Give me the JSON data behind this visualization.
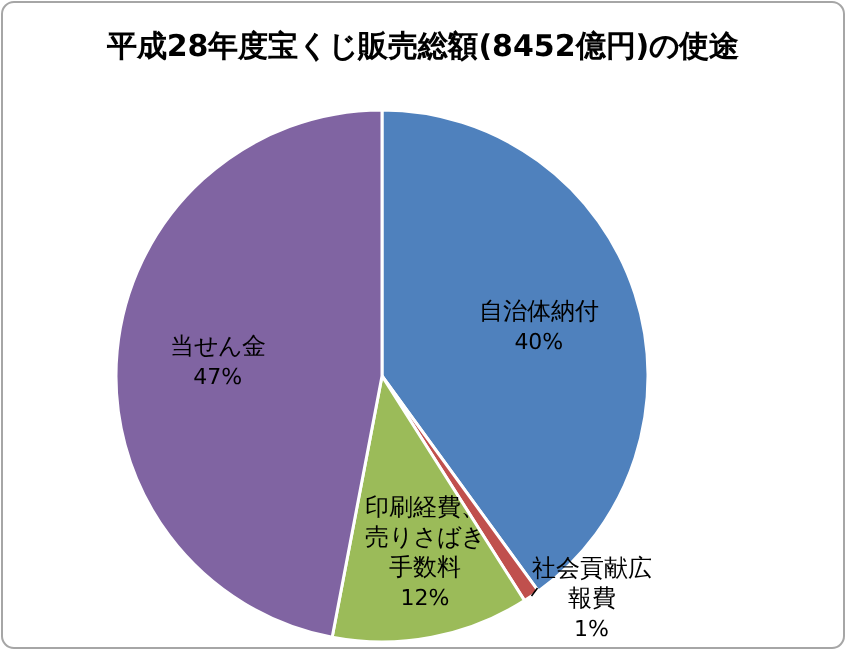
{
  "chart_data": {
    "type": "pie",
    "title": "平成28年度宝くじ販売総額(8452億円)の使途",
    "categories": [
      "自治体納付",
      "社会貢献広報費",
      "印刷経費、売りさばき手数料",
      "当せん金"
    ],
    "values": [
      40,
      1,
      12,
      47
    ],
    "colors": [
      "#4f81bd",
      "#c0504d",
      "#9bbb59",
      "#8064a2"
    ],
    "value_labels": [
      "40%",
      "1%",
      "12%",
      "47%"
    ]
  }
}
